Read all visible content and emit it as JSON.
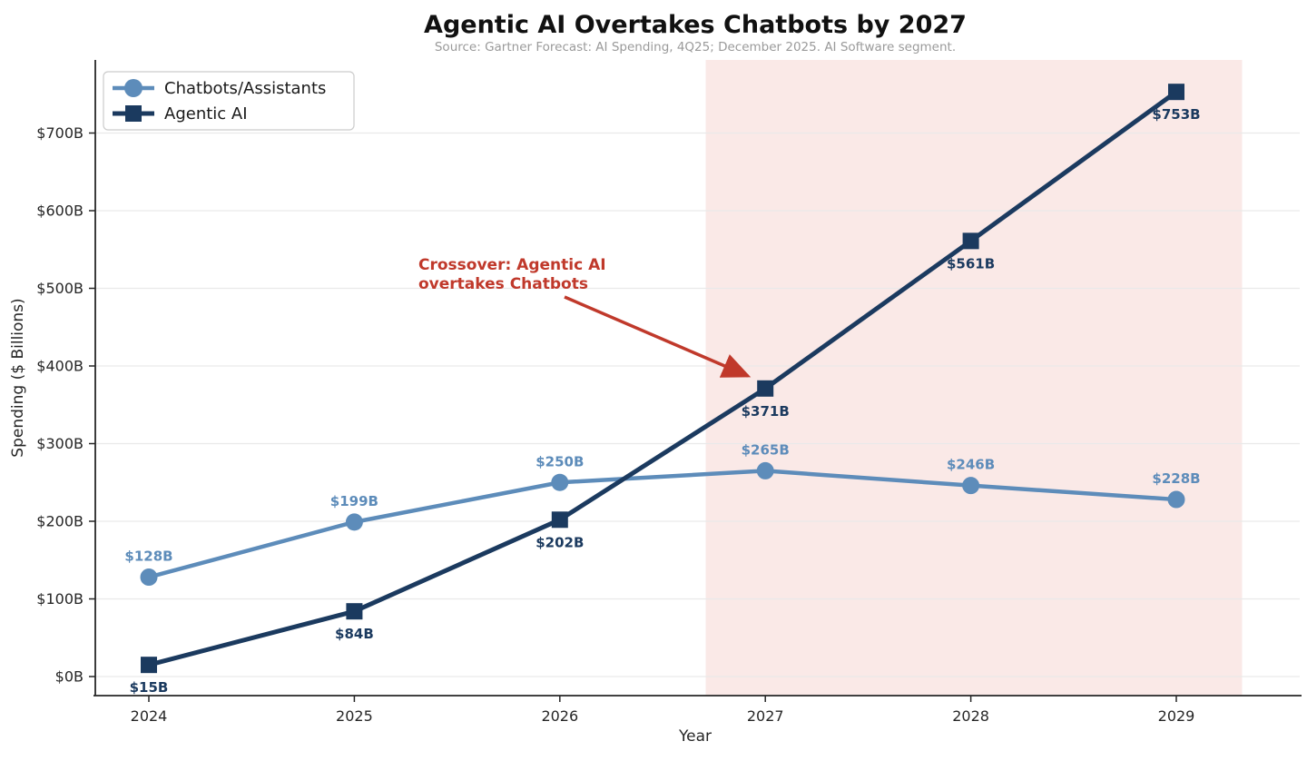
{
  "title": "Agentic AI Overtakes Chatbots by 2027",
  "subtitle": "Source: Gartner Forecast: AI Spending, 4Q25; December 2025. AI Software segment.",
  "annotation": {
    "line1": "Crossover: Agentic AI",
    "line2": "overtakes Chatbots"
  },
  "colors": {
    "chatbots": "#5d8cba",
    "agentic": "#1b3a5f",
    "annotation": "#c0392b",
    "forecast_band": "#fae9e7",
    "grid": "#e9e9e9",
    "spine": "#262626",
    "legend_border": "#cccccc"
  },
  "chart_data": {
    "type": "line",
    "title": "Agentic AI Overtakes Chatbots by 2027",
    "subtitle": "Source: Gartner Forecast: AI Spending, 4Q25; December 2025. AI Software segment.",
    "xlabel": "Year",
    "ylabel": "Spending ($ Billions)",
    "x": [
      2024,
      2025,
      2026,
      2027,
      2028,
      2029
    ],
    "x_tick_labels": [
      "2024",
      "2025",
      "2026",
      "2027",
      "2028",
      "2029"
    ],
    "y_ticks": [
      0,
      100,
      200,
      300,
      400,
      500,
      600,
      700
    ],
    "y_tick_labels": [
      "$0B",
      "$100B",
      "$200B",
      "$300B",
      "$400B",
      "$500B",
      "$600B",
      "$700B"
    ],
    "xlim": [
      2023.74,
      2029.6
    ],
    "ylim": [
      -22,
      790
    ],
    "grid": true,
    "legend_position": "upper left",
    "series": [
      {
        "name": "Chatbots/Assistants",
        "marker": "circle",
        "color": "#5d8cba",
        "values": [
          128,
          199,
          250,
          265,
          246,
          228
        ],
        "labels": [
          "$128B",
          "$199B",
          "$250B",
          "$265B",
          "$246B",
          "$228B"
        ],
        "label_side": "above"
      },
      {
        "name": "Agentic AI",
        "marker": "square",
        "color": "#1b3a5f",
        "values": [
          15,
          84,
          202,
          371,
          561,
          753
        ],
        "labels": [
          "$15B",
          "$84B",
          "$202B",
          "$371B",
          "$561B",
          "$753B"
        ],
        "label_side": "below"
      }
    ],
    "forecast_span": {
      "x_start": 2026.71,
      "x_end": 2029.32
    },
    "annotation": {
      "text": "Crossover: Agentic AI overtakes Chatbots",
      "points_to": {
        "x": 2027,
        "y": 371
      }
    }
  }
}
